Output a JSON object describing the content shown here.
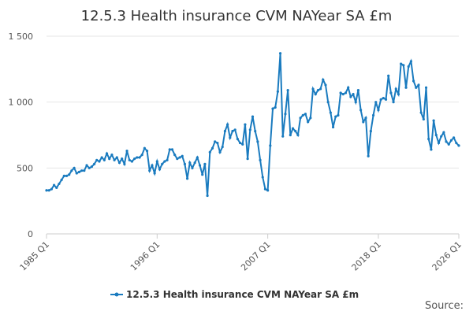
{
  "chart_data": {
    "type": "line",
    "title": "12.5.3 Health insurance CVM NAYear SA £m",
    "source": "Source:",
    "categories": [
      "1985 Q1",
      null,
      null,
      null,
      null,
      null,
      null,
      null,
      null,
      null,
      null,
      null,
      null,
      null,
      null,
      null,
      null,
      null,
      null,
      null,
      null,
      null,
      null,
      null,
      null,
      null,
      null,
      null,
      null,
      null,
      null,
      null,
      null,
      null,
      null,
      null,
      null,
      null,
      null,
      null,
      null,
      null,
      null,
      null,
      "1996 Q1",
      null,
      null,
      null,
      null,
      null,
      null,
      null,
      null,
      null,
      null,
      null,
      null,
      null,
      null,
      null,
      null,
      null,
      null,
      null,
      null,
      null,
      null,
      null,
      null,
      null,
      null,
      null,
      null,
      null,
      null,
      null,
      null,
      null,
      null,
      null,
      null,
      null,
      null,
      null,
      null,
      null,
      null,
      null,
      "2007 Q1",
      null,
      null,
      null,
      null,
      null,
      null,
      null,
      null,
      null,
      null,
      null,
      null,
      null,
      null,
      null,
      null,
      null,
      null,
      null,
      null,
      null,
      null,
      null,
      null,
      null,
      null,
      null,
      null,
      null,
      null,
      null,
      null,
      null,
      null,
      null,
      null,
      null,
      null,
      null,
      null,
      null,
      null,
      null,
      "2018 Q1",
      null,
      null,
      null,
      null,
      null,
      null,
      null,
      null,
      null,
      null,
      null,
      null,
      null,
      null,
      null,
      null,
      null,
      null,
      null,
      null,
      null,
      null,
      null,
      null,
      null,
      null,
      null,
      null,
      null,
      null,
      null,
      "2026 Q1"
    ],
    "series": [
      {
        "name": "12.5.3 Health insurance CVM NAYear SA £m",
        "color": "#1a7bbf",
        "values": [
          330,
          330,
          340,
          370,
          350,
          380,
          410,
          440,
          440,
          450,
          480,
          500,
          460,
          470,
          480,
          480,
          520,
          500,
          510,
          530,
          560,
          550,
          580,
          560,
          610,
          570,
          600,
          560,
          580,
          540,
          570,
          530,
          630,
          560,
          550,
          570,
          580,
          580,
          600,
          650,
          630,
          480,
          520,
          460,
          550,
          490,
          530,
          550,
          560,
          640,
          640,
          600,
          570,
          580,
          590,
          530,
          420,
          540,
          500,
          540,
          580,
          520,
          450,
          530,
          290,
          620,
          650,
          700,
          690,
          620,
          660,
          780,
          830,
          730,
          780,
          790,
          720,
          690,
          680,
          830,
          570,
          790,
          890,
          780,
          700,
          560,
          430,
          340,
          330,
          670,
          950,
          960,
          1080,
          1370,
          740,
          910,
          1090,
          750,
          800,
          780,
          750,
          880,
          900,
          910,
          850,
          880,
          1100,
          1060,
          1090,
          1100,
          1170,
          1130,
          1000,
          920,
          810,
          890,
          900,
          1070,
          1060,
          1070,
          1110,
          1040,
          1060,
          1000,
          1090,
          940,
          850,
          880,
          590,
          780,
          900,
          1000,
          940,
          1020,
          1030,
          1020,
          1200,
          1070,
          1000,
          1100,
          1060,
          1290,
          1280,
          1110,
          1270,
          1310,
          1160,
          1110,
          1130,
          920,
          870,
          1110,
          720,
          640,
          860,
          750,
          690,
          740,
          770,
          700,
          680,
          710,
          730,
          690,
          670
        ]
      }
    ],
    "ylim": [
      0,
      1500
    ],
    "yticks": [
      0,
      500,
      {
        "value": 1000,
        "label": "1 000"
      },
      {
        "value": 1500,
        "label": "1 500"
      }
    ],
    "grid": true
  }
}
